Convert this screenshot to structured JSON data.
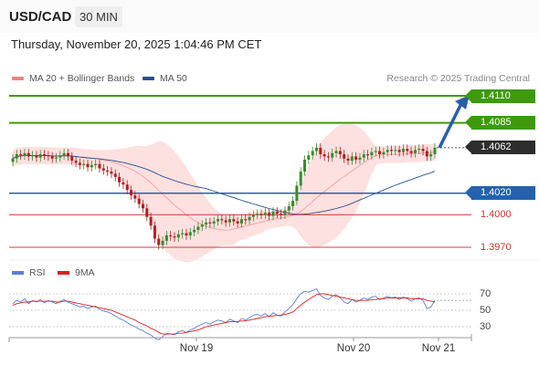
{
  "header": {
    "pair": "USD/CAD",
    "timeframe": "30 MIN"
  },
  "timestamp": "Thursday, November 20, 2025 1:04:46 PM CET",
  "legend": {
    "bollinger_label": "MA 20 + Bollinger Bands",
    "bollinger_color": "#f08080",
    "ma50_label": "MA 50",
    "ma50_color": "#2a4f8c"
  },
  "credit": "Research © 2025 Trading Central",
  "levels": [
    {
      "label": "1.4110",
      "value": 1.411,
      "kind": "resistance"
    },
    {
      "label": "1.4085",
      "value": 1.4085,
      "kind": "resistance"
    },
    {
      "label": "1.4062",
      "value": 1.4062,
      "kind": "last"
    },
    {
      "label": "1.4020",
      "value": 1.402,
      "kind": "pivot"
    },
    {
      "label": "1.4000",
      "value": 1.4,
      "kind": "support"
    },
    {
      "label": "1.3970",
      "value": 1.397,
      "kind": "support"
    }
  ],
  "rsi_panel": {
    "rsi_label": "RSI",
    "rsi_color": "#5a7fd6",
    "ma_label": "9MA",
    "ma_color": "#e02020",
    "levels": [
      "70",
      "50",
      "30"
    ]
  },
  "x_axis": [
    "Nov 19",
    "Nov 20",
    "Nov 21"
  ],
  "colors": {
    "up": "#3a8a2c",
    "down": "#b02020",
    "green_line": "#3e9a0d",
    "blue_line": "#2462ad",
    "red_line": "#d04040",
    "band_fill": "#fde0e0"
  },
  "chart_data": [
    {
      "type": "candlestick",
      "title": "USD/CAD",
      "series": [
        {
          "name": "MA 20 + Bollinger Bands"
        },
        {
          "name": "MA 50"
        }
      ],
      "ohlc_close": [
        1.4052,
        1.4056,
        1.4055,
        1.4057,
        1.4054,
        1.4055,
        1.4053,
        1.4056,
        1.4055,
        1.4054,
        1.4052,
        1.4053,
        1.4055,
        1.4057,
        1.4054,
        1.405,
        1.4048,
        1.4046,
        1.4047,
        1.4044,
        1.4046,
        1.4047,
        1.4043,
        1.4041,
        1.404,
        1.4038,
        1.4035,
        1.403,
        1.4028,
        1.4023,
        1.4018,
        1.4015,
        1.401,
        1.4006,
        1.3998,
        1.399,
        1.3978,
        1.3972,
        1.3976,
        1.3981,
        1.398,
        1.3979,
        1.3982,
        1.3983,
        1.3981,
        1.3984,
        1.3986,
        1.3989,
        1.3991,
        1.3993,
        1.3992,
        1.3994,
        1.3996,
        1.3995,
        1.3993,
        1.3996,
        1.3994,
        1.3992,
        1.3996,
        1.3995,
        1.3998,
        1.4,
        1.4001,
        1.4,
        1.4002,
        1.3999,
        1.4003,
        1.4001,
        1.4,
        1.4004,
        1.4008,
        1.4013,
        1.4027,
        1.404,
        1.4051,
        1.4055,
        1.4059,
        1.4062,
        1.4056,
        1.4054,
        1.4053,
        1.4057,
        1.4059,
        1.4056,
        1.4052,
        1.405,
        1.4054,
        1.4051,
        1.4053,
        1.4056,
        1.4055,
        1.4058,
        1.4059,
        1.4056,
        1.4058,
        1.406,
        1.4059,
        1.406,
        1.4058,
        1.4061,
        1.4059,
        1.4057,
        1.406,
        1.4061,
        1.4059,
        1.4054,
        1.4056,
        1.4062
      ],
      "levels": [
        1.411,
        1.4085,
        1.4062,
        1.402,
        1.4,
        1.397
      ],
      "x_ticks": [
        "Nov 19",
        "Nov 20",
        "Nov 21"
      ]
    },
    {
      "type": "line",
      "title": "RSI",
      "series": [
        {
          "name": "RSI",
          "values": [
            58,
            62,
            60,
            64,
            58,
            62,
            60,
            63,
            59,
            62,
            60,
            58,
            61,
            63,
            60,
            58,
            56,
            54,
            55,
            52,
            54,
            55,
            51,
            49,
            48,
            46,
            43,
            40,
            38,
            35,
            32,
            30,
            27,
            25,
            22,
            20,
            16,
            14,
            18,
            22,
            21,
            20,
            24,
            25,
            23,
            26,
            28,
            31,
            33,
            35,
            33,
            36,
            38,
            37,
            35,
            39,
            37,
            35,
            40,
            38,
            41,
            44,
            45,
            43,
            46,
            42,
            47,
            44,
            43,
            48,
            52,
            57,
            64,
            70,
            73,
            72,
            74,
            76,
            68,
            65,
            63,
            67,
            69,
            65,
            60,
            58,
            63,
            60,
            62,
            65,
            63,
            66,
            67,
            63,
            65,
            67,
            65,
            66,
            63,
            66,
            64,
            61,
            64,
            65,
            62,
            52,
            54,
            62
          ]
        },
        {
          "name": "9MA",
          "values": [
            56,
            58,
            59,
            60,
            60,
            61,
            61,
            61,
            61,
            61,
            61,
            60,
            60,
            61,
            61,
            60,
            59,
            58,
            57,
            56,
            55,
            54,
            53,
            52,
            51,
            50,
            48,
            46,
            44,
            42,
            40,
            38,
            35,
            33,
            31,
            28,
            26,
            23,
            21,
            21,
            21,
            21,
            22,
            22,
            23,
            24,
            25,
            26,
            28,
            30,
            31,
            32,
            33,
            34,
            35,
            36,
            36,
            36,
            37,
            37,
            38,
            39,
            40,
            41,
            42,
            43,
            43,
            44,
            44,
            45,
            46,
            48,
            52,
            56,
            60,
            63,
            66,
            69,
            70,
            70,
            69,
            68,
            67,
            66,
            65,
            64,
            63,
            62,
            62,
            62,
            62,
            63,
            63,
            64,
            64,
            65,
            65,
            65,
            65,
            65,
            65,
            64,
            64,
            64,
            64,
            62,
            61,
            60
          ]
        }
      ],
      "levels": [
        70,
        50,
        30
      ]
    }
  ]
}
